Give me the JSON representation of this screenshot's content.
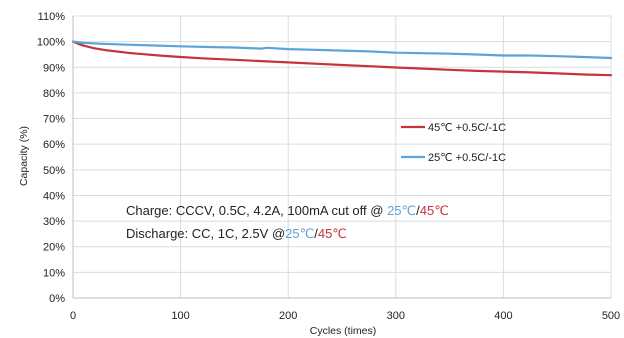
{
  "chart_data": {
    "type": "line",
    "title": "",
    "xlabel": "Cycles (times)",
    "ylabel": "Capacity (%)",
    "xlim": [
      0,
      500
    ],
    "ylim": [
      0,
      110
    ],
    "x_ticks": [
      0,
      100,
      200,
      300,
      400,
      500
    ],
    "y_ticks": [
      0,
      10,
      20,
      30,
      40,
      50,
      60,
      70,
      80,
      90,
      100,
      110
    ],
    "y_tick_suffix": "%",
    "grid": true,
    "legend_position": "right",
    "series": [
      {
        "name": "45℃ +0.5C/-1C",
        "color": "#c8323a",
        "x": [
          0,
          5,
          10,
          20,
          30,
          40,
          50,
          60,
          80,
          100,
          120,
          150,
          175,
          200,
          225,
          250,
          275,
          300,
          325,
          350,
          375,
          400,
          425,
          450,
          475,
          500
        ],
        "y": [
          100,
          99.1,
          98.4,
          97.4,
          96.7,
          96.2,
          95.7,
          95.3,
          94.6,
          94.0,
          93.5,
          92.9,
          92.4,
          91.9,
          91.4,
          90.9,
          90.4,
          89.9,
          89.5,
          89.0,
          88.6,
          88.3,
          88.0,
          87.6,
          87.2,
          86.9
        ]
      },
      {
        "name": "25℃ +0.5C/-1C",
        "color": "#5ba3d9",
        "x": [
          0,
          10,
          25,
          50,
          75,
          100,
          125,
          150,
          175,
          180,
          200,
          225,
          250,
          275,
          300,
          325,
          350,
          375,
          400,
          425,
          450,
          475,
          500
        ],
        "y": [
          100,
          99.5,
          99.2,
          98.8,
          98.5,
          98.2,
          97.9,
          97.7,
          97.3,
          97.6,
          97.1,
          96.8,
          96.5,
          96.2,
          95.7,
          95.5,
          95.3,
          95.0,
          94.6,
          94.6,
          94.3,
          94.0,
          93.6
        ]
      }
    ],
    "notes": [
      {
        "segments": [
          {
            "text": "Charge: CCCV, 0.5C, 4.2A, 100mA cut off @ ",
            "color": "#222222"
          },
          {
            "text": "25℃",
            "color": "#5ba3d9"
          },
          {
            "text": "/",
            "color": "#222222"
          },
          {
            "text": "45℃",
            "color": "#c8323a"
          }
        ]
      },
      {
        "segments": [
          {
            "text": "Discharge: CC, 1C, 2.5V @",
            "color": "#222222"
          },
          {
            "text": "25℃",
            "color": "#5ba3d9"
          },
          {
            "text": "/",
            "color": "#222222"
          },
          {
            "text": "45℃",
            "color": "#c8323a"
          }
        ]
      }
    ]
  }
}
